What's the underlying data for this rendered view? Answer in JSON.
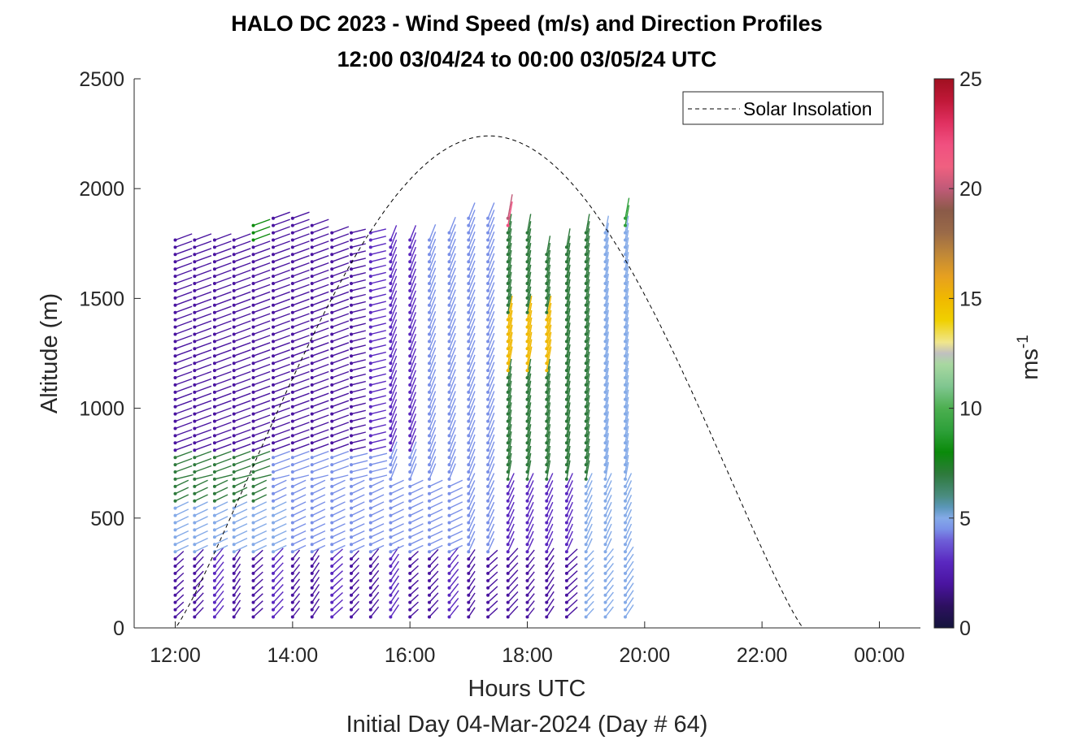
{
  "chart_data": {
    "type": "wind-barb-profile",
    "title_line1": "HALO DC 2023 - Wind Speed (m/s) and Direction Profiles",
    "title_line2": "12:00 03/04/24 to 00:00 03/05/24  UTC",
    "xlabel": "Hours UTC",
    "subxlabel": "Initial Day 04-Mar-2024 (Day # 64)",
    "ylabel": "Altitude (m)",
    "xlim": [
      11.3,
      24.7
    ],
    "ylim": [
      0,
      2500
    ],
    "x_ticks": [
      12,
      14,
      16,
      18,
      20,
      22,
      24
    ],
    "x_tick_labels": [
      "12:00",
      "14:00",
      "16:00",
      "18:00",
      "20:00",
      "22:00",
      "00:00"
    ],
    "y_ticks": [
      0,
      500,
      1000,
      1500,
      2000,
      2500
    ],
    "y_tick_labels": [
      "0",
      "500",
      "1000",
      "1500",
      "2000",
      "2500"
    ],
    "colorbar": {
      "label": "ms-1",
      "label_base": "ms",
      "label_exp": "-1",
      "range": [
        0,
        25
      ],
      "ticks": [
        0,
        5,
        10,
        15,
        20,
        25
      ],
      "tick_labels": [
        "0",
        "5",
        "10",
        "15",
        "20",
        "25"
      ]
    },
    "legend": {
      "entries": [
        "Solar Insolation"
      ],
      "position": "top-right"
    },
    "solar_insolation": {
      "sunrise_hour": 12.0,
      "sunset_hour": 22.7,
      "peak_hour": 17.35,
      "peak_altitude_equiv": 2240
    },
    "profile_times": [
      12.0,
      12.33,
      12.67,
      13.0,
      13.33,
      13.67,
      14.0,
      14.33,
      14.67,
      15.0,
      15.33,
      15.67,
      16.0,
      16.33,
      16.67,
      17.0,
      17.33,
      17.67,
      18.0,
      18.33,
      18.67,
      19.0,
      19.33,
      19.67
    ],
    "profile_top_altitudes": [
      1780,
      1790,
      1790,
      1790,
      1840,
      1870,
      1870,
      1840,
      1830,
      1800,
      1800,
      1790,
      1790,
      1790,
      1830,
      1870,
      1870,
      1880,
      1820,
      1730,
      1760,
      1800,
      1820,
      1880
    ],
    "speed_scale": [
      0,
      1,
      2,
      3,
      4,
      4.5,
      5,
      5.5,
      6,
      7,
      8,
      9,
      10,
      11,
      12,
      12.5,
      13,
      14,
      15,
      16,
      17,
      18,
      19,
      20,
      21,
      22,
      23,
      24,
      25
    ],
    "speed_colors": [
      "#14143c",
      "#2d1060",
      "#4a14a0",
      "#5a28c0",
      "#6e60d8",
      "#7a90e8",
      "#84aae8",
      "#5a96b8",
      "#4a8c80",
      "#2e7a3c",
      "#0a8a0a",
      "#2ea03a",
      "#4caf50",
      "#80c690",
      "#a8d8a0",
      "#c0c0c0",
      "#f0e68c",
      "#f0d000",
      "#f0b800",
      "#e6a020",
      "#c08838",
      "#9a6a48",
      "#8a5a48",
      "#c05a78",
      "#f06080",
      "#f05080",
      "#e03060",
      "#c01838",
      "#a01020"
    ]
  }
}
